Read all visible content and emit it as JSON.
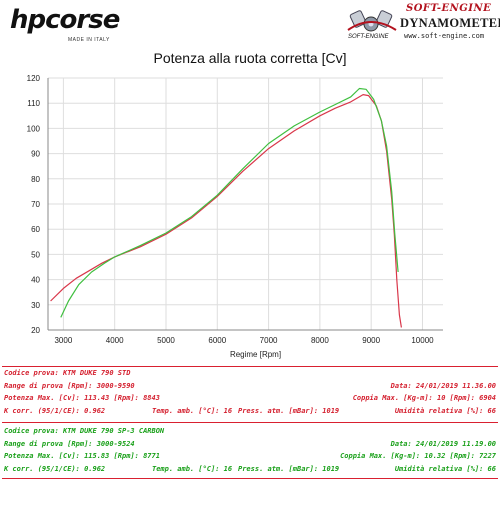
{
  "header": {
    "left_logo": {
      "text": "hpcorse",
      "subtext": "MADE IN ITALY"
    },
    "right_logo": {
      "title": "SOFT-ENGINE",
      "subtitle": "DYNAMOMETERS",
      "url": "www.soft-engine.com",
      "mark": "SOFT-ENGINE"
    }
  },
  "chart_title": "Potenza alla ruota corretta [Cv]",
  "colors": {
    "series_std": "#d9374a",
    "series_carbon": "#3fbf3f",
    "std_text": "#d41f2e",
    "carbon_text": "#19a019",
    "separator": "#d92030",
    "grid": "#dedede",
    "axis": "#888888"
  },
  "chart_data": {
    "type": "line",
    "title": "Potenza alla ruota corretta [Cv]",
    "xlabel": "Regime [Rpm]",
    "ylabel": "",
    "xlim": [
      2700,
      10400
    ],
    "ylim": [
      20,
      120
    ],
    "xticks": [
      3000,
      4000,
      5000,
      6000,
      7000,
      8000,
      9000,
      10000
    ],
    "yticks": [
      20,
      30,
      40,
      50,
      60,
      70,
      80,
      90,
      100,
      110,
      120
    ],
    "grid": true,
    "legend": "none",
    "series": [
      {
        "name": "KTM DUKE 790 STD",
        "color": "#d9374a",
        "x": [
          2750,
          3000,
          3250,
          3500,
          3750,
          4000,
          4500,
          5000,
          5500,
          6000,
          6500,
          7000,
          7500,
          8000,
          8300,
          8600,
          8843,
          8950,
          9100,
          9200,
          9300,
          9400,
          9450,
          9500,
          9550,
          9590
        ],
        "y": [
          31.5,
          36.5,
          40.5,
          43.5,
          46.5,
          49,
          53,
          58,
          64.5,
          73,
          83,
          92,
          99,
          105,
          108,
          110.5,
          113.43,
          113,
          109,
          103,
          91,
          72,
          58,
          40,
          26,
          21
        ]
      },
      {
        "name": "KTM DUKE 790 SP-3 CARBON",
        "color": "#3fbf3f",
        "x": [
          2950,
          3100,
          3300,
          3550,
          3800,
          4000,
          4500,
          5000,
          5500,
          6000,
          6500,
          7000,
          7500,
          8000,
          8300,
          8600,
          8771,
          8900,
          9050,
          9200,
          9300,
          9400,
          9460,
          9524
        ],
        "y": [
          25,
          31.5,
          38,
          43,
          46.5,
          49,
          53.5,
          58.5,
          65,
          73.5,
          84,
          94,
          101,
          106.5,
          109.5,
          112.5,
          115.83,
          115.5,
          111.5,
          103,
          93,
          75,
          58,
          43
        ]
      }
    ]
  },
  "info_blocks": [
    {
      "tone": "std",
      "rows": [
        {
          "left": "Codice prova: KTM DUKE 790 STD"
        },
        {
          "left": "Range di prova [Rpm]: 3000-9590",
          "right": "Data: 24/01/2019   11.36.00"
        },
        {
          "left": "Potenza Max. [Cv]: 113.43   [Rpm]: 8843",
          "right": "Coppia Max. [Kg-m]: 10   [Rpm]: 6904"
        },
        {
          "left": "K corr. (95/1/CE): 0.962",
          "mid1": "Temp. amb. [°C]: 16",
          "mid2": "Press. atm. [mBar]: 1019",
          "right": "Umidità relativa [%]: 66"
        }
      ]
    },
    {
      "tone": "carbon",
      "rows": [
        {
          "left": "Codice prova: KTM DUKE 790 SP-3 CARBON"
        },
        {
          "left": "Range di prova [Rpm]: 3000-9524",
          "right": "Data: 24/01/2019   11.19.00"
        },
        {
          "left": "Potenza Max. [Cv]: 115.83   [Rpm]: 8771",
          "right": "Coppia Max. [Kg-m]: 10.32   [Rpm]: 7227"
        },
        {
          "left": "K corr. (95/1/CE): 0.962",
          "mid1": "Temp. amb. [°C]: 16",
          "mid2": "Press. atm. [mBar]: 1019",
          "right": "Umidità relativa [%]: 66"
        }
      ]
    }
  ]
}
